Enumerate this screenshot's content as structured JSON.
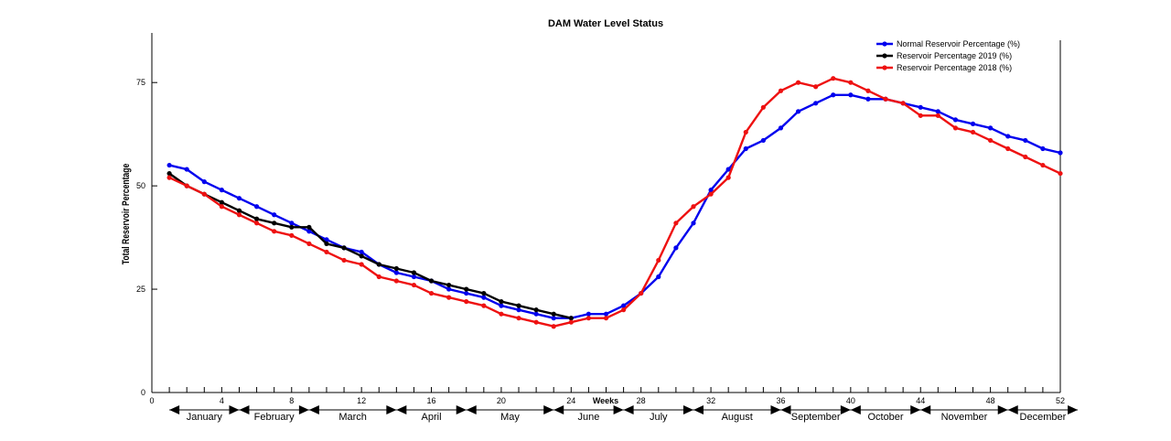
{
  "chart_data": {
    "type": "line",
    "title": "DAM Water Level Status",
    "xlabel": "Weeks",
    "ylabel": "Total Reservoir Percentage",
    "xlim": [
      0,
      52
    ],
    "ylim": [
      0,
      87
    ],
    "xticks": [
      0,
      4,
      8,
      12,
      16,
      20,
      24,
      28,
      32,
      36,
      40,
      44,
      48,
      52
    ],
    "yticks": [
      0,
      25,
      50,
      75
    ],
    "legend_position": "top-right",
    "months": [
      {
        "name": "January",
        "start": 1,
        "end": 5
      },
      {
        "name": "February",
        "start": 5,
        "end": 9
      },
      {
        "name": "March",
        "start": 9,
        "end": 14
      },
      {
        "name": "April",
        "start": 14,
        "end": 18
      },
      {
        "name": "May",
        "start": 18,
        "end": 23
      },
      {
        "name": "June",
        "start": 23,
        "end": 27
      },
      {
        "name": "July",
        "start": 27,
        "end": 31
      },
      {
        "name": "August",
        "start": 31,
        "end": 36
      },
      {
        "name": "September",
        "start": 36,
        "end": 40
      },
      {
        "name": "October",
        "start": 40,
        "end": 44
      },
      {
        "name": "November",
        "start": 44,
        "end": 49
      },
      {
        "name": "December",
        "start": 49,
        "end": 53
      }
    ],
    "series": [
      {
        "name": "Normal Reservoir Percentage (%)",
        "color": "#0000ee",
        "x": [
          1,
          2,
          3,
          4,
          5,
          6,
          7,
          8,
          9,
          10,
          11,
          12,
          13,
          14,
          15,
          16,
          17,
          18,
          19,
          20,
          21,
          22,
          23,
          24,
          25,
          26,
          27,
          28,
          29,
          30,
          31,
          32,
          33,
          34,
          35,
          36,
          37,
          38,
          39,
          40,
          41,
          42,
          43,
          44,
          45,
          46,
          47,
          48,
          49,
          50,
          51,
          52
        ],
        "values": [
          55,
          54,
          51,
          49,
          47,
          45,
          43,
          41,
          39,
          37,
          35,
          34,
          31,
          29,
          28,
          27,
          25,
          24,
          23,
          21,
          20,
          19,
          18,
          18,
          19,
          19,
          21,
          24,
          28,
          35,
          41,
          49,
          54,
          59,
          61,
          64,
          68,
          70,
          72,
          72,
          71,
          71,
          70,
          69,
          68,
          66,
          65,
          64,
          62,
          61,
          59,
          58
        ]
      },
      {
        "name": "Reservoir Percentage 2019 (%)",
        "color": "#000000",
        "x": [
          1,
          2,
          3,
          4,
          5,
          6,
          7,
          8,
          9,
          10,
          11,
          12,
          13,
          14,
          15,
          16,
          17,
          18,
          19,
          20,
          21,
          22,
          23,
          24
        ],
        "values": [
          53,
          50,
          48,
          46,
          44,
          42,
          41,
          40,
          40,
          36,
          35,
          33,
          31,
          30,
          29,
          27,
          26,
          25,
          24,
          22,
          21,
          20,
          19,
          18
        ]
      },
      {
        "name": "Reservoir Percentage 2018 (%)",
        "color": "#ee1111",
        "x": [
          1,
          2,
          3,
          4,
          5,
          6,
          7,
          8,
          9,
          10,
          11,
          12,
          13,
          14,
          15,
          16,
          17,
          18,
          19,
          20,
          21,
          22,
          23,
          24,
          25,
          26,
          27,
          28,
          29,
          30,
          31,
          32,
          33,
          34,
          35,
          36,
          37,
          38,
          39,
          40,
          41,
          42,
          43,
          44,
          45,
          46,
          47,
          48,
          49,
          50,
          51,
          52
        ],
        "values": [
          52,
          50,
          48,
          45,
          43,
          41,
          39,
          38,
          36,
          34,
          32,
          31,
          28,
          27,
          26,
          24,
          23,
          22,
          21,
          19,
          18,
          17,
          16,
          17,
          18,
          18,
          20,
          24,
          32,
          41,
          45,
          48,
          52,
          63,
          69,
          73,
          75,
          74,
          76,
          75,
          73,
          71,
          70,
          67,
          67,
          64,
          63,
          61,
          59,
          57,
          55,
          53
        ]
      }
    ]
  }
}
